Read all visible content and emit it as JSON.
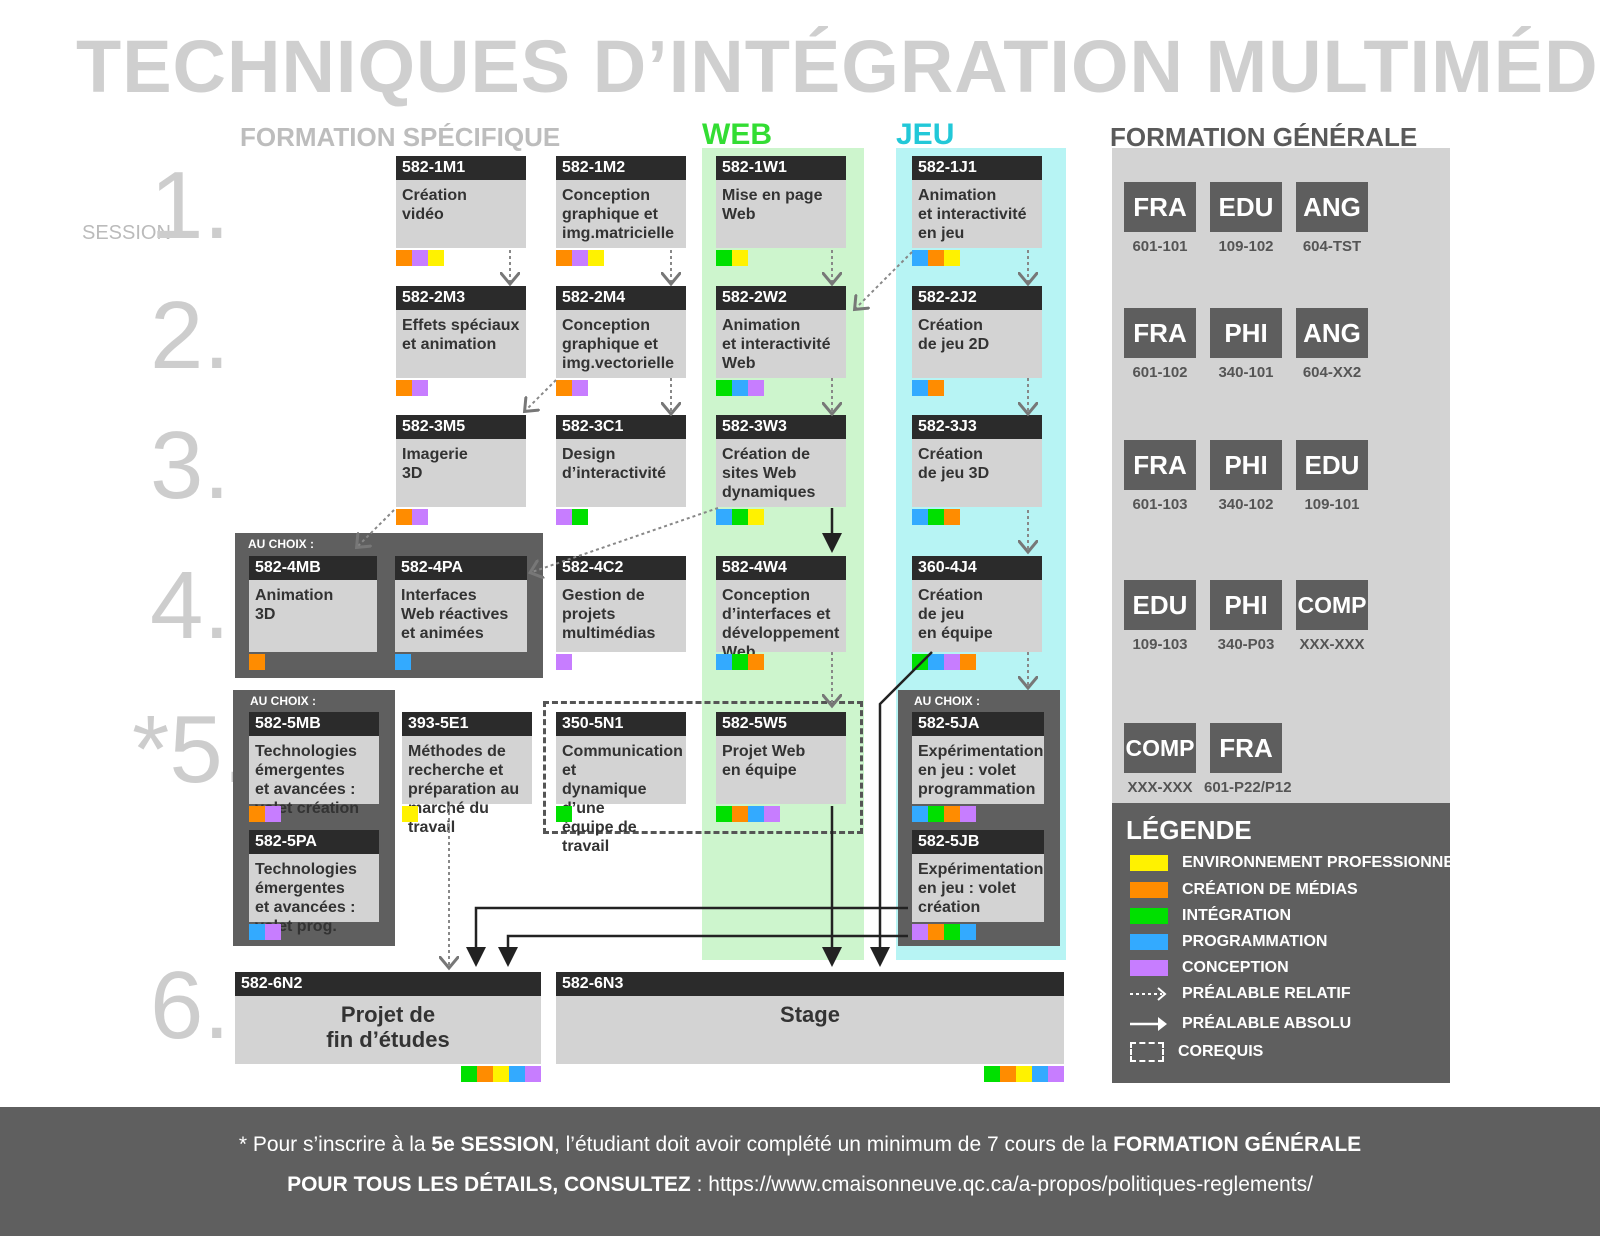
{
  "title": "TECHNIQUES D’INTÉGRATION MULTIMÉDIA",
  "headers": {
    "specific": "FORMATION SPÉCIFIQUE",
    "web": "WEB",
    "jeu": "JEU",
    "general": "FORMATION GÉNÉRALE"
  },
  "sessions": {
    "label": "SESSION",
    "s1": "1.",
    "s2": "2.",
    "s3": "3.",
    "s4": "4.",
    "s5": "*5.",
    "s6": "6."
  },
  "au_choix": "AU CHOIX :",
  "colors": {
    "env_pro": "#fff200",
    "creation_medias": "#ff8c00",
    "integration": "#00e000",
    "programmation": "#33aaff",
    "conception": "#c77dff",
    "web_band": "#cdf5cd",
    "jeu_band": "#b7f4f4",
    "web_title": "#33dd33",
    "jeu_title": "#22c8d8"
  },
  "courses": [
    {
      "id": "c1m1",
      "code": "582-1M1",
      "name": "Création\nvidéo",
      "swatches": [
        "creation_medias",
        "conception",
        "env_pro"
      ]
    },
    {
      "id": "c1m2",
      "code": "582-1M2",
      "name": "Conception\ngraphique et\nimg.matricielle",
      "swatches": [
        "creation_medias",
        "conception",
        "env_pro"
      ]
    },
    {
      "id": "c1w1",
      "code": "582-1W1",
      "name": "Mise en page\nWeb",
      "swatches": [
        "integration",
        "env_pro"
      ]
    },
    {
      "id": "c1j1",
      "code": "582-1J1",
      "name": "Animation\net interactivité\nen jeu",
      "swatches": [
        "programmation",
        "creation_medias",
        "env_pro"
      ]
    },
    {
      "id": "c2m3",
      "code": "582-2M3",
      "name": "Effets spéciaux\net animation",
      "swatches": [
        "creation_medias",
        "conception"
      ]
    },
    {
      "id": "c2m4",
      "code": "582-2M4",
      "name": "Conception\ngraphique et\nimg.vectorielle",
      "swatches": [
        "creation_medias",
        "conception"
      ]
    },
    {
      "id": "c2w2",
      "code": "582-2W2",
      "name": "Animation\net interactivité\nWeb",
      "swatches": [
        "integration",
        "programmation",
        "conception"
      ]
    },
    {
      "id": "c2j2",
      "code": "582-2J2",
      "name": "Création\nde jeu 2D",
      "swatches": [
        "programmation",
        "creation_medias"
      ]
    },
    {
      "id": "c3m5",
      "code": "582-3M5",
      "name": "Imagerie\n3D",
      "swatches": [
        "creation_medias",
        "conception"
      ]
    },
    {
      "id": "c3c1",
      "code": "582-3C1",
      "name": "Design\nd’interactivité",
      "swatches": [
        "conception",
        "integration"
      ]
    },
    {
      "id": "c3w3",
      "code": "582-3W3",
      "name": "Création de\nsites Web\ndynamiques",
      "swatches": [
        "programmation",
        "integration",
        "env_pro"
      ]
    },
    {
      "id": "c3j3",
      "code": "582-3J3",
      "name": "Création\nde jeu 3D",
      "swatches": [
        "programmation",
        "integration",
        "creation_medias"
      ]
    },
    {
      "id": "c4mb",
      "code": "582-4MB",
      "name": "Animation\n3D",
      "swatches": [
        "creation_medias"
      ]
    },
    {
      "id": "c4pa",
      "code": "582-4PA",
      "name": "Interfaces\nWeb réactives\net animées",
      "swatches": [
        "programmation"
      ]
    },
    {
      "id": "c4c2",
      "code": "582-4C2",
      "name": "Gestion de\nprojets\nmultimédias",
      "swatches": [
        "conception"
      ]
    },
    {
      "id": "c4w4",
      "code": "582-4W4",
      "name": "Conception\nd’interfaces et\ndéveloppement\nWeb",
      "swatches": [
        "programmation",
        "integration",
        "creation_medias"
      ]
    },
    {
      "id": "c4j4",
      "code": "360-4J4",
      "name": "Création\nde jeu\nen équipe",
      "swatches": [
        "integration",
        "programmation",
        "conception",
        "creation_medias"
      ]
    },
    {
      "id": "c5mb",
      "code": "582-5MB",
      "name": "Technologies\némergentes\net avancées :\nvolet création",
      "swatches": [
        "creation_medias",
        "conception"
      ]
    },
    {
      "id": "c5pa",
      "code": "582-5PA",
      "name": "Technologies\némergentes\net avancées :\nvolet prog.",
      "swatches": [
        "programmation",
        "conception"
      ]
    },
    {
      "id": "c5e1",
      "code": "393-5E1",
      "name": "Méthodes de\nrecherche et\npréparation au\nmarché du travail",
      "swatches": [
        "env_pro"
      ]
    },
    {
      "id": "c5n1",
      "code": "350-5N1",
      "name": "Communication et\ndynamique d’une\néquipe de travail",
      "swatches": [
        "integration"
      ]
    },
    {
      "id": "c5w5",
      "code": "582-5W5",
      "name": "Projet Web\nen équipe",
      "swatches": [
        "integration",
        "creation_medias",
        "programmation",
        "conception"
      ]
    },
    {
      "id": "c5ja",
      "code": "582-5JA",
      "name": "Expérimentation\nen jeu : volet\nprogrammation",
      "swatches": [
        "programmation",
        "integration",
        "creation_medias",
        "conception"
      ]
    },
    {
      "id": "c5jb",
      "code": "582-5JB",
      "name": "Expérimentation\nen jeu : volet\ncréation",
      "swatches": [
        "conception",
        "creation_medias",
        "integration",
        "programmation"
      ]
    },
    {
      "id": "c6n2",
      "code": "582-6N2",
      "name": "Projet de\nfin d’études",
      "swatches": [
        "integration",
        "creation_medias",
        "env_pro",
        "programmation",
        "conception"
      ]
    },
    {
      "id": "c6n3",
      "code": "582-6N3",
      "name": "Stage",
      "swatches": [
        "integration",
        "creation_medias",
        "env_pro",
        "programmation",
        "conception"
      ]
    }
  ],
  "general": [
    {
      "subject": "FRA",
      "code": "601-101"
    },
    {
      "subject": "EDU",
      "code": "109-102"
    },
    {
      "subject": "ANG",
      "code": "604-TST"
    },
    {
      "subject": "FRA",
      "code": "601-102"
    },
    {
      "subject": "PHI",
      "code": "340-101"
    },
    {
      "subject": "ANG",
      "code": "604-XX2"
    },
    {
      "subject": "FRA",
      "code": "601-103"
    },
    {
      "subject": "PHI",
      "code": "340-102"
    },
    {
      "subject": "EDU",
      "code": "109-101"
    },
    {
      "subject": "EDU",
      "code": "109-103"
    },
    {
      "subject": "PHI",
      "code": "340-P03"
    },
    {
      "subject": "COMP",
      "code": "XXX-XXX"
    },
    {
      "subject": "COMP",
      "code": "XXX-XXX"
    },
    {
      "subject": "FRA",
      "code": "601-P22/P12"
    }
  ],
  "legend": {
    "title": "LÉGENDE",
    "env_pro": "ENVIRONNEMENT PROFESSIONNEL",
    "creation_medias": "CRÉATION DE MÉDIAS",
    "integration": "INTÉGRATION",
    "programmation": "PROGRAMMATION",
    "conception": "CONCEPTION",
    "prealable_relatif": "PRÉALABLE RELATIF",
    "prealable_absolu": "PRÉALABLE ABSOLU",
    "corequis": "COREQUIS"
  },
  "footer": {
    "l1_a": "* Pour s’inscrire à la ",
    "l1_b": "5e SESSION",
    "l1_c": ", l’étudiant doit avoir complété un minimum de 7 cours de la ",
    "l1_d": "FORMATION GÉNÉRALE",
    "l2_a": "POUR TOUS LES DÉTAILS, CONSULTEZ",
    "l2_b": " : https://www.cmaisonneuve.qc.ca/a-propos/politiques-reglements/"
  }
}
